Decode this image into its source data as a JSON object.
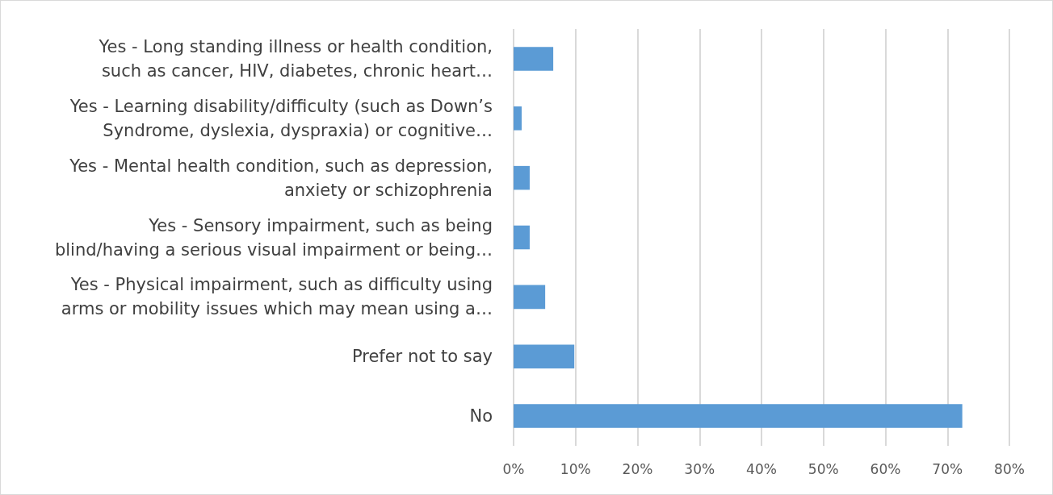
{
  "chart_data": {
    "type": "bar",
    "orientation": "horizontal",
    "categories": [
      "Yes - Long standing illness or health condition,\nsuch as cancer, HIV, diabetes, chronic heart…",
      "Yes - Learning disability/difficulty (such as Down’s\nSyndrome, dyslexia, dyspraxia) or cognitive…",
      "Yes - Mental health condition, such as depression,\nanxiety or schizophrenia",
      "Yes - Sensory impairment, such as being\nblind/having a serious visual impairment or being…",
      "Yes - Physical impairment, such as difficulty using\narms or mobility issues which may mean using a…",
      "Prefer not to say",
      "No"
    ],
    "values": [
      6.4,
      1.3,
      2.6,
      2.6,
      5.1,
      9.8,
      72.4
    ],
    "color": "#5b9bd5",
    "xlim": [
      0,
      80
    ],
    "xticks": [
      {
        "value": 0,
        "label": "0%"
      },
      {
        "value": 10,
        "label": "10%"
      },
      {
        "value": 20,
        "label": "20%"
      },
      {
        "value": 30,
        "label": "30%"
      },
      {
        "value": 40,
        "label": "40%"
      },
      {
        "value": 50,
        "label": "50%"
      },
      {
        "value": 60,
        "label": "60%"
      },
      {
        "value": 70,
        "label": "70%"
      },
      {
        "value": 80,
        "label": "80%"
      }
    ],
    "grid": "x"
  }
}
